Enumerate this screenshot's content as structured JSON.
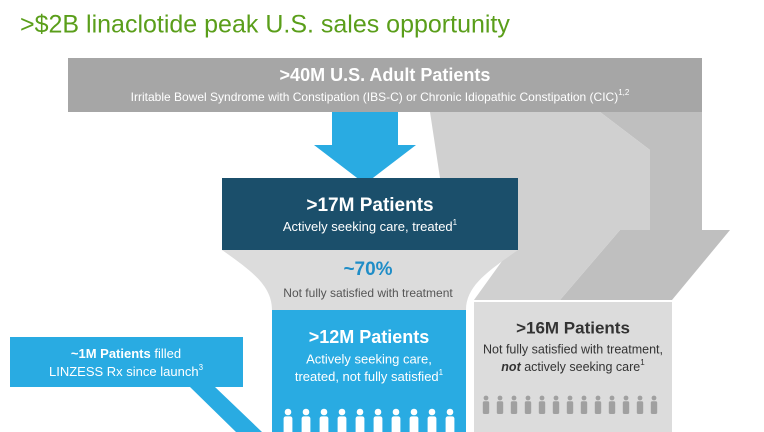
{
  "header": {
    "title": ">$2B linaclotide peak U.S. sales opportunity"
  },
  "nodes": [
    {
      "label": ">40M U.S. Adult Patients",
      "text": "Irritable Bowel Syndrome with Constipation (IBS-C) or Chronic Idiopathic Constipation (CIC)",
      "sup": "1,2"
    },
    {
      "label": ">17M Patients",
      "text": "Actively seeking care, treated",
      "sup": "1"
    },
    {
      "label": "~70%",
      "text": "Not fully satisfied with treatment"
    },
    {
      "label": ">12M Patients",
      "text": [
        "Actively seeking care,",
        "treated, not fully satisfied"
      ],
      "sup": "1"
    },
    {
      "label": ">16M Patients",
      "text": [
        "Not fully satisfied with treatment,",
        "not",
        " actively seeking care"
      ],
      "sup": "1"
    }
  ],
  "callout": {
    "label": "~1M Patients",
    "text": [
      " filled",
      "LINZESS Rx since launch"
    ],
    "sup": "3"
  }
}
